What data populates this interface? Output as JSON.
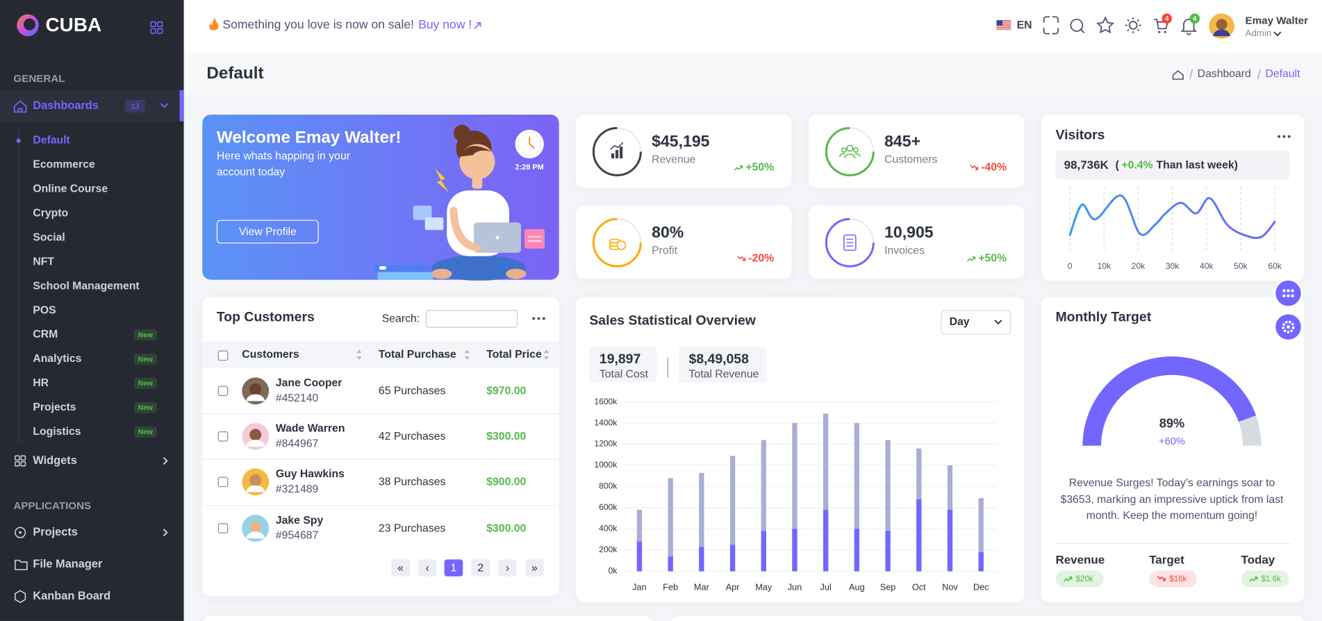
{
  "sidebar": {
    "brand": "CUBA",
    "general_title": "GENERAL",
    "dashboards": {
      "label": "Dashboards",
      "badge": "13"
    },
    "dashboard_items": [
      {
        "label": "Default",
        "active": true
      },
      {
        "label": "Ecommerce"
      },
      {
        "label": "Online Course"
      },
      {
        "label": "Crypto"
      },
      {
        "label": "Social"
      },
      {
        "label": "NFT"
      },
      {
        "label": "School Management"
      },
      {
        "label": "POS"
      },
      {
        "label": "CRM",
        "badge": "New"
      },
      {
        "label": "Analytics",
        "badge": "New"
      },
      {
        "label": "HR",
        "badge": "New"
      },
      {
        "label": "Projects",
        "badge": "New"
      },
      {
        "label": "Logistics",
        "badge": "New"
      }
    ],
    "widgets": "Widgets",
    "applications_title": "APPLICATIONS",
    "app_items": [
      "Projects",
      "File Manager",
      "Kanban Board"
    ]
  },
  "header": {
    "promo": "Something you love is now on sale!",
    "promo_link": "Buy now !",
    "language": "EN",
    "cart_count": "4",
    "notification_count": "4",
    "user_name": "Emay Walter",
    "user_role": "Admin"
  },
  "page": {
    "title": "Default",
    "breadcrumb": [
      "Dashboard",
      "Default"
    ]
  },
  "welcome": {
    "title": "Welcome Emay Walter!",
    "text": "Here whats happing in your account today",
    "button": "View Profile",
    "time": "2:28 PM"
  },
  "stats": [
    {
      "value": "$45,195",
      "label": "Revenue",
      "change": "+50%",
      "trend": "up",
      "color": "#3d434a"
    },
    {
      "value": "845+",
      "label": "Customers",
      "change": "-40%",
      "trend": "down",
      "color": "#54ba4a"
    },
    {
      "value": "80%",
      "label": "Profit",
      "change": "-20%",
      "trend": "down",
      "color": "#ffaa05"
    },
    {
      "value": "10,905",
      "label": "Invoices",
      "change": "+50%",
      "trend": "up",
      "color": "#7366ff"
    }
  ],
  "customers": {
    "title": "Top Customers",
    "search_label": "Search:",
    "columns": [
      "Customers",
      "Total Purchase",
      "Total Price"
    ],
    "rows": [
      {
        "name": "Jane Cooper",
        "id": "#452140",
        "purchases": "65 Purchases",
        "price": "$970.00"
      },
      {
        "name": "Wade Warren",
        "id": "#844967",
        "purchases": "42 Purchases",
        "price": "$300.00"
      },
      {
        "name": "Guy Hawkins",
        "id": "#321489",
        "purchases": "38 Purchases",
        "price": "$900.00"
      },
      {
        "name": "Jake Spy",
        "id": "#954687",
        "purchases": "23 Purchases",
        "price": "$300.00"
      }
    ],
    "pagination": [
      {
        "label": "«"
      },
      {
        "label": "‹"
      },
      {
        "label": "1",
        "active": true
      },
      {
        "label": "2"
      },
      {
        "label": "›"
      },
      {
        "label": "»"
      }
    ]
  },
  "chart_data": [
    {
      "type": "line",
      "title": "Visitors",
      "count": "98,736K",
      "open": "(",
      "change": "+0.4%",
      "comparison": "Than last week)",
      "x": [
        0,
        3500,
        7500,
        15000,
        20500,
        25000,
        28000,
        32500,
        37000,
        41000,
        46000,
        51000,
        56000,
        60000
      ],
      "values": [
        27,
        73,
        51,
        87,
        29,
        43,
        60,
        76,
        60,
        83,
        43,
        27,
        24,
        47
      ],
      "colors": [
        "#3d9ae0",
        "#7366ff"
      ],
      "xlim": [
        0,
        60000
      ],
      "ylim": [
        0,
        100
      ],
      "xticks": [
        0,
        {
          "value": 10000,
          "label": "10k"
        },
        {
          "value": 20000,
          "label": "20k"
        },
        {
          "value": 30000,
          "label": "30k"
        },
        {
          "value": 40000,
          "label": "40k"
        },
        {
          "value": 50000,
          "label": "50k"
        },
        {
          "value": 60000,
          "label": "60k"
        }
      ],
      "grid": true
    },
    {
      "type": "bar",
      "title": "Sales Statistical Overview",
      "period": "Day",
      "summary": [
        {
          "value": "19,897"
        },
        {
          "value": "$8,49,058"
        }
      ],
      "categories": [
        "Jan",
        "Feb",
        "Mar",
        "Apr",
        "May",
        "Jun",
        "Jul",
        "Aug",
        "Sep",
        "Oct",
        "Nov",
        "Dec"
      ],
      "series": [
        {
          "name": "Total Cost",
          "color": "#aaadd4",
          "values": [
            580000,
            880000,
            930000,
            1090000,
            1240000,
            1400000,
            1490000,
            1400000,
            1240000,
            1160000,
            1000000,
            690000
          ]
        },
        {
          "name": "Total Revenue",
          "color": "#7366ff",
          "values": [
            280000,
            140000,
            230000,
            250000,
            380000,
            400000,
            580000,
            400000,
            380000,
            680000,
            580000,
            180000
          ]
        }
      ],
      "ylim": [
        0,
        1600000
      ],
      "yticks": [
        {
          "value": 0,
          "label": "0k"
        },
        {
          "value": 200000,
          "label": "200k"
        },
        {
          "value": 400000,
          "label": "400k"
        },
        {
          "value": 600000,
          "label": "600k"
        },
        {
          "value": 800000,
          "label": "800k"
        },
        {
          "value": 1000000,
          "label": "1000k"
        },
        {
          "value": 1200000,
          "label": "1200k"
        },
        {
          "value": 1400000,
          "label": "1400k"
        },
        {
          "value": 1600000,
          "label": "1600k"
        }
      ],
      "grid": true
    },
    {
      "type": "gauge",
      "title": "Monthly Target",
      "values": [
        89
      ],
      "value_labels": [
        "89%"
      ],
      "change": "+60%",
      "ylim": [
        0,
        100
      ],
      "color": "#7366ff",
      "track_color": "#d8dce2",
      "description": "Revenue Surges! Today's earnings soar to $3653, marking an impressive uptick from last month. Keep the momentum going!",
      "targets": [
        {
          "label": "Revenue",
          "value": "$20k",
          "trend": "up"
        },
        {
          "label": "Target",
          "value": "$16k",
          "trend": "down"
        },
        {
          "label": "Today",
          "value": "$1.6k",
          "trend": "up"
        }
      ]
    }
  ]
}
